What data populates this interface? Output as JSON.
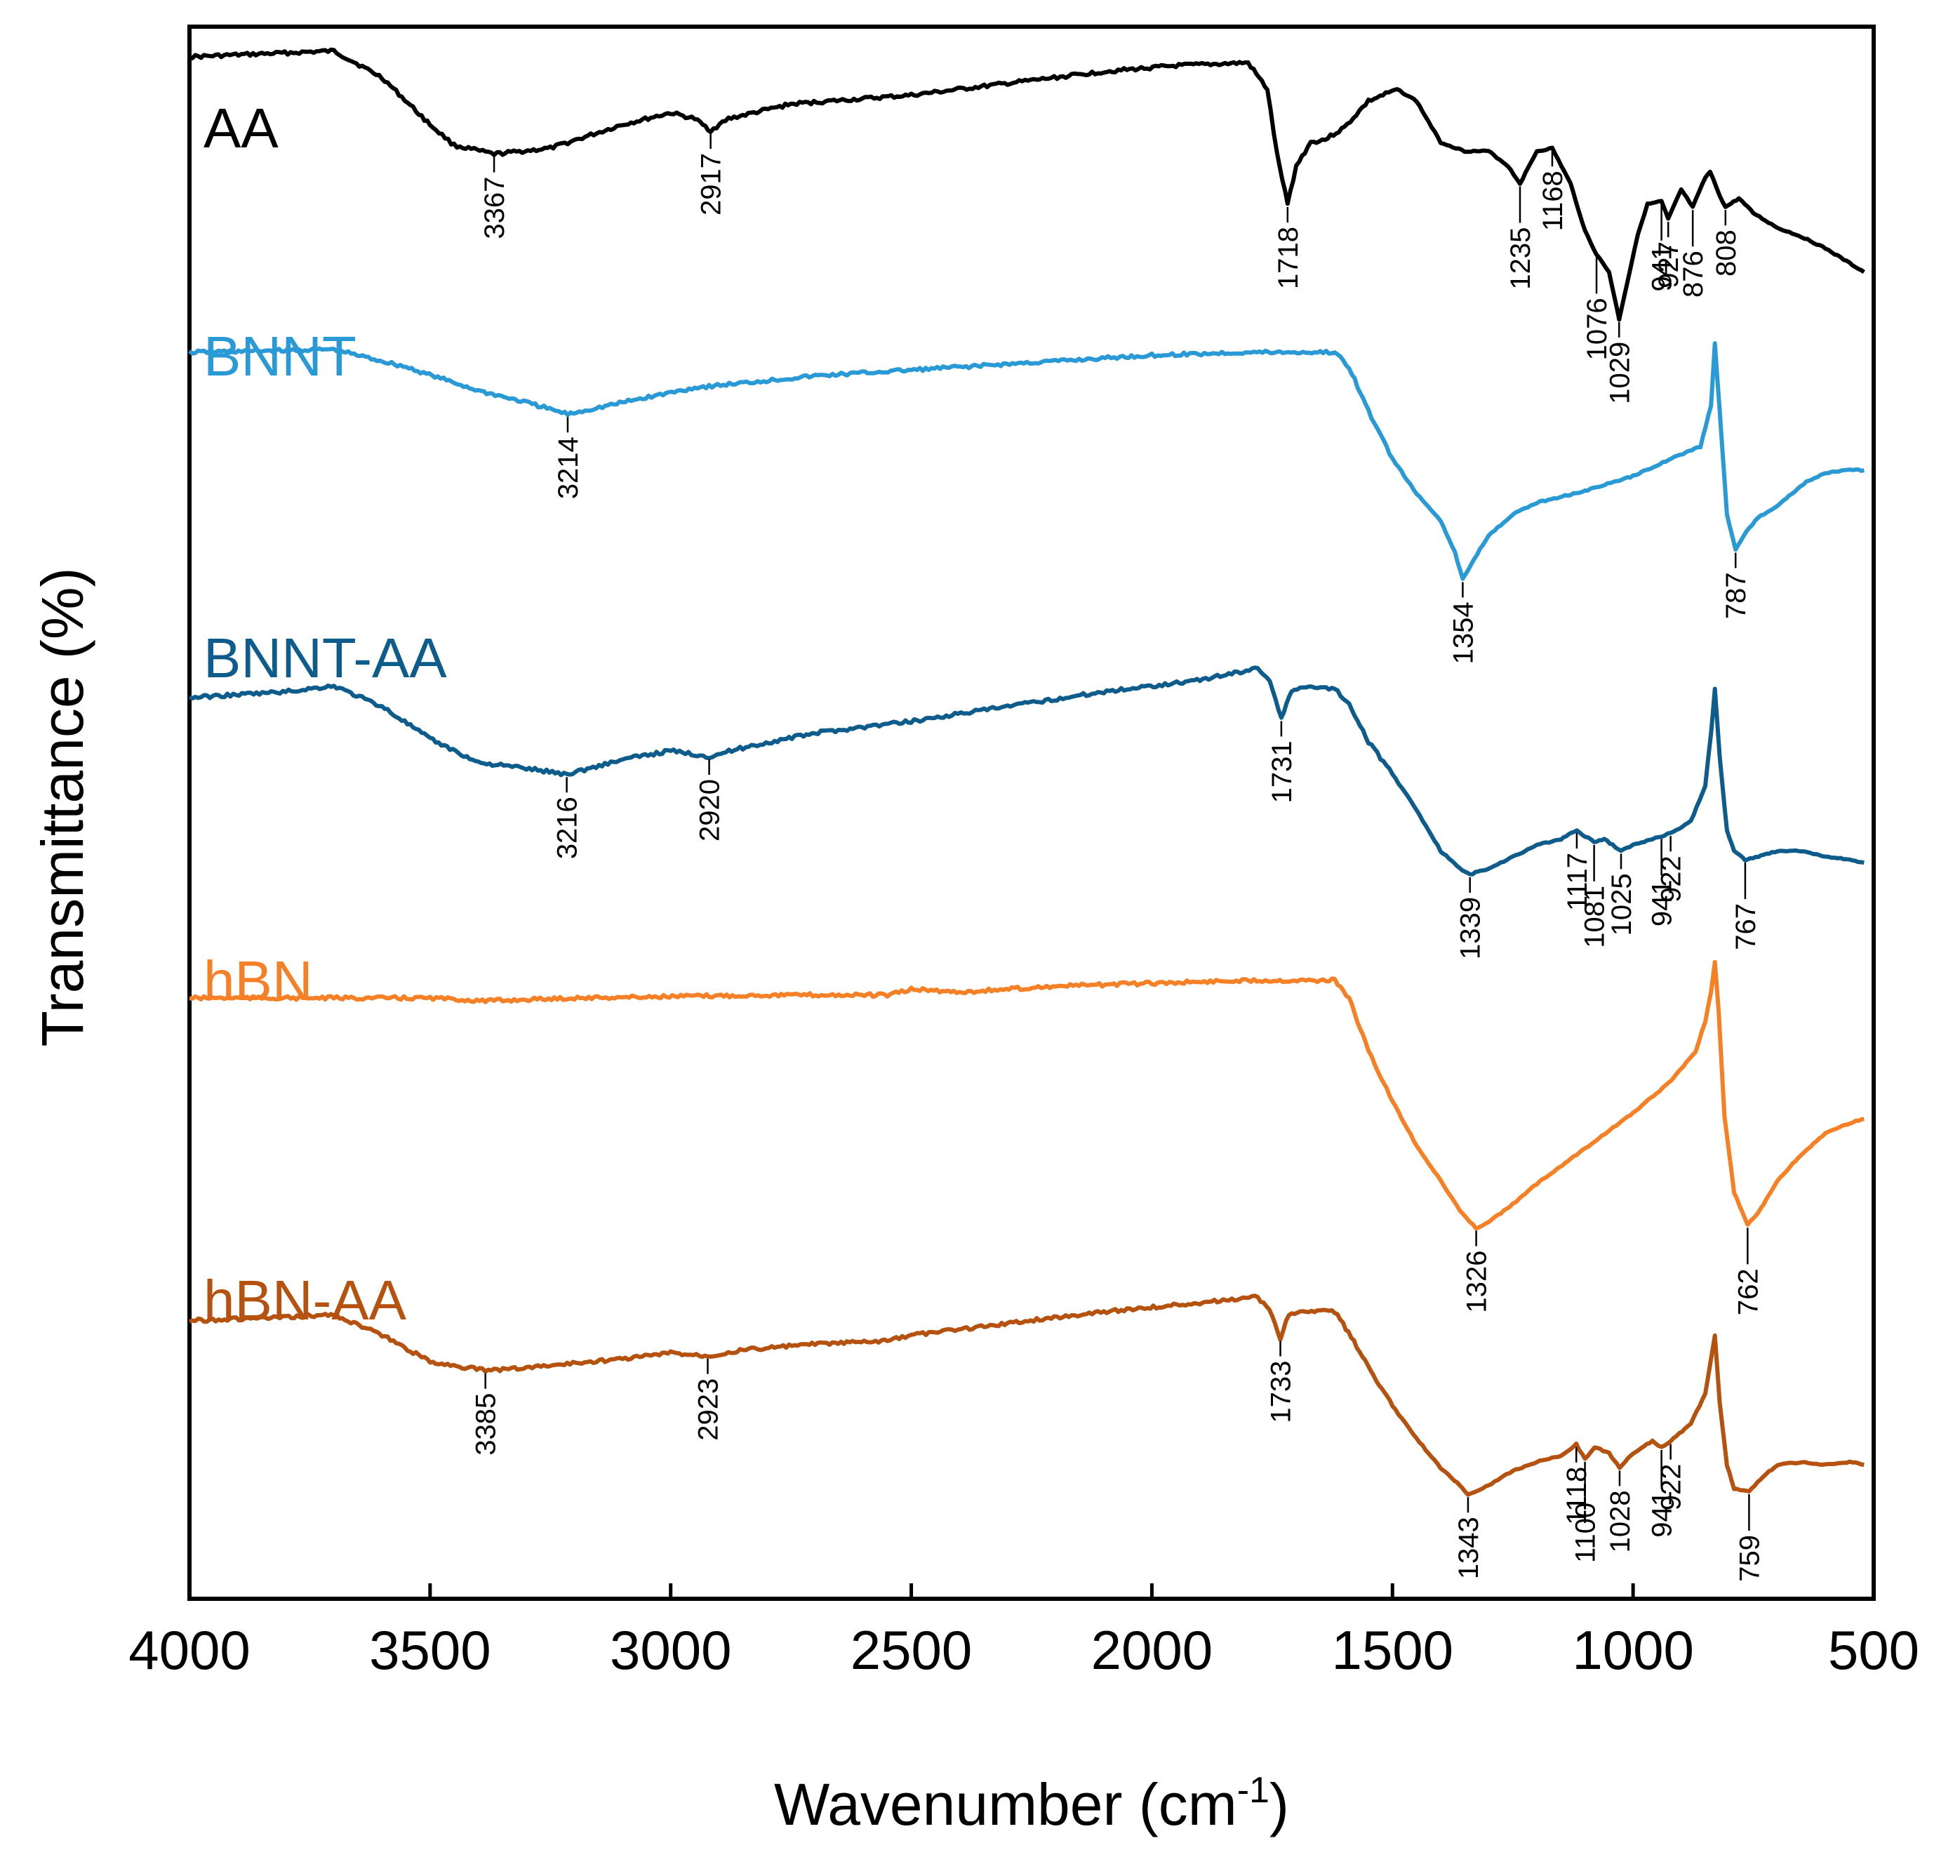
{
  "chart_data": {
    "type": "line",
    "title": "",
    "xlabel": "Wavenumber (cm",
    "xlabel_sup": "-1",
    "xlabel_close": ")",
    "ylabel": "Transmittance (%)",
    "xlim": [
      4000,
      500
    ],
    "xticks": [
      "4000",
      "3500",
      "3000",
      "2500",
      "2000",
      "1500",
      "1000",
      "500"
    ],
    "y_units": "arbitrary, vertically offset",
    "series": [
      {
        "name": "AA",
        "color": "#000000",
        "points": [
          [
            4000,
            0.95
          ],
          [
            3850,
            0.96
          ],
          [
            3700,
            0.97
          ],
          [
            3600,
            0.88
          ],
          [
            3500,
            0.72
          ],
          [
            3450,
            0.65
          ],
          [
            3367,
            0.62
          ],
          [
            3250,
            0.64
          ],
          [
            3100,
            0.72
          ],
          [
            3000,
            0.76
          ],
          [
            2950,
            0.74
          ],
          [
            2917,
            0.7
          ],
          [
            2880,
            0.74
          ],
          [
            2750,
            0.79
          ],
          [
            2500,
            0.82
          ],
          [
            2300,
            0.86
          ],
          [
            2100,
            0.9
          ],
          [
            1950,
            0.92
          ],
          [
            1800,
            0.93
          ],
          [
            1760,
            0.84
          ],
          [
            1740,
            0.62
          ],
          [
            1718,
            0.45
          ],
          [
            1700,
            0.58
          ],
          [
            1670,
            0.66
          ],
          [
            1640,
            0.67
          ],
          [
            1600,
            0.71
          ],
          [
            1550,
            0.8
          ],
          [
            1490,
            0.84
          ],
          [
            1450,
            0.8
          ],
          [
            1400,
            0.66
          ],
          [
            1350,
            0.63
          ],
          [
            1300,
            0.63
          ],
          [
            1260,
            0.58
          ],
          [
            1235,
            0.52
          ],
          [
            1200,
            0.63
          ],
          [
            1168,
            0.64
          ],
          [
            1130,
            0.52
          ],
          [
            1100,
            0.36
          ],
          [
            1076,
            0.28
          ],
          [
            1050,
            0.22
          ],
          [
            1029,
            0.06
          ],
          [
            1010,
            0.2
          ],
          [
            990,
            0.35
          ],
          [
            970,
            0.45
          ],
          [
            941,
            0.46
          ],
          [
            927,
            0.4
          ],
          [
            900,
            0.5
          ],
          [
            876,
            0.44
          ],
          [
            850,
            0.54
          ],
          [
            840,
            0.56
          ],
          [
            820,
            0.48
          ],
          [
            808,
            0.44
          ],
          [
            780,
            0.47
          ],
          [
            750,
            0.42
          ],
          [
            700,
            0.37
          ],
          [
            650,
            0.34
          ],
          [
            600,
            0.3
          ],
          [
            550,
            0.25
          ],
          [
            520,
            0.22
          ]
        ],
        "peaks": [
          {
            "wn": 3367,
            "label": "3367"
          },
          {
            "wn": 2917,
            "label": "2917"
          },
          {
            "wn": 1718,
            "label": "1718"
          },
          {
            "wn": 1235,
            "label": "1235"
          },
          {
            "wn": 1168,
            "label": "1168"
          },
          {
            "wn": 1076,
            "label": "1076"
          },
          {
            "wn": 1029,
            "label": "1029"
          },
          {
            "wn": 941,
            "label": "941"
          },
          {
            "wn": 927,
            "label": "927"
          },
          {
            "wn": 876,
            "label": "876"
          },
          {
            "wn": 808,
            "label": "808"
          }
        ]
      },
      {
        "name": "BNNT",
        "color": "#2a9ad6",
        "points": [
          [
            4000,
            0.9
          ],
          [
            3700,
            0.91
          ],
          [
            3550,
            0.85
          ],
          [
            3400,
            0.77
          ],
          [
            3300,
            0.73
          ],
          [
            3214,
            0.69
          ],
          [
            3100,
            0.73
          ],
          [
            2950,
            0.78
          ],
          [
            2700,
            0.82
          ],
          [
            2500,
            0.84
          ],
          [
            2200,
            0.87
          ],
          [
            2000,
            0.89
          ],
          [
            1800,
            0.9
          ],
          [
            1620,
            0.9
          ],
          [
            1590,
            0.85
          ],
          [
            1550,
            0.7
          ],
          [
            1500,
            0.54
          ],
          [
            1450,
            0.42
          ],
          [
            1400,
            0.33
          ],
          [
            1370,
            0.22
          ],
          [
            1354,
            0.13
          ],
          [
            1330,
            0.2
          ],
          [
            1300,
            0.28
          ],
          [
            1250,
            0.35
          ],
          [
            1200,
            0.39
          ],
          [
            1100,
            0.43
          ],
          [
            1000,
            0.48
          ],
          [
            920,
            0.54
          ],
          [
            860,
            0.58
          ],
          [
            838,
            0.72
          ],
          [
            830,
            0.93
          ],
          [
            820,
            0.7
          ],
          [
            805,
            0.35
          ],
          [
            787,
            0.23
          ],
          [
            770,
            0.28
          ],
          [
            740,
            0.34
          ],
          [
            700,
            0.38
          ],
          [
            640,
            0.46
          ],
          [
            600,
            0.49
          ],
          [
            560,
            0.5
          ],
          [
            520,
            0.5
          ]
        ],
        "peaks": [
          {
            "wn": 3214,
            "label": "3214"
          },
          {
            "wn": 1354,
            "label": "1354"
          },
          {
            "wn": 787,
            "label": "787"
          }
        ]
      },
      {
        "name": "BNNT-AA",
        "color": "#0d5c8c",
        "points": [
          [
            4000,
            0.8
          ],
          [
            3800,
            0.82
          ],
          [
            3700,
            0.84
          ],
          [
            3600,
            0.77
          ],
          [
            3500,
            0.66
          ],
          [
            3400,
            0.58
          ],
          [
            3300,
            0.56
          ],
          [
            3216,
            0.54
          ],
          [
            3100,
            0.59
          ],
          [
            3000,
            0.62
          ],
          [
            2920,
            0.6
          ],
          [
            2850,
            0.63
          ],
          [
            2700,
            0.68
          ],
          [
            2500,
            0.72
          ],
          [
            2300,
            0.77
          ],
          [
            2100,
            0.82
          ],
          [
            1900,
            0.86
          ],
          [
            1780,
            0.9
          ],
          [
            1755,
            0.86
          ],
          [
            1731,
            0.73
          ],
          [
            1710,
            0.82
          ],
          [
            1680,
            0.84
          ],
          [
            1620,
            0.83
          ],
          [
            1590,
            0.78
          ],
          [
            1550,
            0.65
          ],
          [
            1500,
            0.54
          ],
          [
            1450,
            0.42
          ],
          [
            1400,
            0.28
          ],
          [
            1360,
            0.22
          ],
          [
            1339,
            0.2
          ],
          [
            1300,
            0.22
          ],
          [
            1250,
            0.26
          ],
          [
            1200,
            0.3
          ],
          [
            1150,
            0.32
          ],
          [
            1117,
            0.35
          ],
          [
            1100,
            0.33
          ],
          [
            1081,
            0.31
          ],
          [
            1060,
            0.32
          ],
          [
            1025,
            0.28
          ],
          [
            1000,
            0.3
          ],
          [
            960,
            0.32
          ],
          [
            941,
            0.33
          ],
          [
            922,
            0.34
          ],
          [
            880,
            0.38
          ],
          [
            850,
            0.5
          ],
          [
            838,
            0.68
          ],
          [
            830,
            0.83
          ],
          [
            820,
            0.6
          ],
          [
            805,
            0.35
          ],
          [
            790,
            0.28
          ],
          [
            767,
            0.25
          ],
          [
            740,
            0.26
          ],
          [
            700,
            0.28
          ],
          [
            650,
            0.28
          ],
          [
            600,
            0.26
          ],
          [
            550,
            0.25
          ],
          [
            520,
            0.24
          ]
        ],
        "peaks": [
          {
            "wn": 3216,
            "label": "3216"
          },
          {
            "wn": 2920,
            "label": "2920"
          },
          {
            "wn": 1731,
            "label": "1731"
          },
          {
            "wn": 1339,
            "label": "1339"
          },
          {
            "wn": 1117,
            "label": "1117"
          },
          {
            "wn": 1081,
            "label": "1081"
          },
          {
            "wn": 1025,
            "label": "1025"
          },
          {
            "wn": 941,
            "label": "941"
          },
          {
            "wn": 922,
            "label": "922"
          },
          {
            "wn": 767,
            "label": "767"
          }
        ]
      },
      {
        "name": "hBN",
        "color": "#f58025",
        "points": [
          [
            4000,
            0.9
          ],
          [
            3700,
            0.9
          ],
          [
            3500,
            0.9
          ],
          [
            3385,
            0.89
          ],
          [
            3200,
            0.9
          ],
          [
            2800,
            0.91
          ],
          [
            2550,
            0.91
          ],
          [
            2520,
            0.92
          ],
          [
            2500,
            0.93
          ],
          [
            2400,
            0.92
          ],
          [
            2200,
            0.94
          ],
          [
            2000,
            0.95
          ],
          [
            1800,
            0.96
          ],
          [
            1620,
            0.96
          ],
          [
            1590,
            0.9
          ],
          [
            1550,
            0.72
          ],
          [
            1500,
            0.55
          ],
          [
            1450,
            0.4
          ],
          [
            1400,
            0.28
          ],
          [
            1360,
            0.18
          ],
          [
            1340,
            0.14
          ],
          [
            1326,
            0.12
          ],
          [
            1300,
            0.14
          ],
          [
            1250,
            0.2
          ],
          [
            1200,
            0.27
          ],
          [
            1100,
            0.39
          ],
          [
            1000,
            0.51
          ],
          [
            920,
            0.62
          ],
          [
            870,
            0.72
          ],
          [
            850,
            0.82
          ],
          [
            838,
            0.92
          ],
          [
            830,
            1.02
          ],
          [
            822,
            0.85
          ],
          [
            810,
            0.5
          ],
          [
            790,
            0.24
          ],
          [
            762,
            0.13
          ],
          [
            740,
            0.17
          ],
          [
            700,
            0.28
          ],
          [
            650,
            0.37
          ],
          [
            600,
            0.44
          ],
          [
            560,
            0.47
          ],
          [
            520,
            0.49
          ]
        ],
        "peaks": [
          {
            "wn": 1326,
            "label": "1326"
          },
          {
            "wn": 762,
            "label": "762"
          }
        ]
      },
      {
        "name": "hBN-AA",
        "color": "#b5520f",
        "points": [
          [
            4000,
            0.83
          ],
          [
            3800,
            0.84
          ],
          [
            3700,
            0.85
          ],
          [
            3600,
            0.78
          ],
          [
            3500,
            0.69
          ],
          [
            3385,
            0.66
          ],
          [
            3300,
            0.67
          ],
          [
            3100,
            0.7
          ],
          [
            3000,
            0.72
          ],
          [
            2923,
            0.71
          ],
          [
            2850,
            0.73
          ],
          [
            2700,
            0.75
          ],
          [
            2550,
            0.76
          ],
          [
            2500,
            0.78
          ],
          [
            2300,
            0.82
          ],
          [
            2100,
            0.86
          ],
          [
            1900,
            0.89
          ],
          [
            1780,
            0.91
          ],
          [
            1750,
            0.85
          ],
          [
            1733,
            0.77
          ],
          [
            1715,
            0.85
          ],
          [
            1680,
            0.86
          ],
          [
            1620,
            0.86
          ],
          [
            1580,
            0.76
          ],
          [
            1540,
            0.64
          ],
          [
            1500,
            0.54
          ],
          [
            1450,
            0.43
          ],
          [
            1400,
            0.33
          ],
          [
            1360,
            0.27
          ],
          [
            1343,
            0.24
          ],
          [
            1300,
            0.27
          ],
          [
            1250,
            0.32
          ],
          [
            1200,
            0.35
          ],
          [
            1150,
            0.37
          ],
          [
            1118,
            0.41
          ],
          [
            1100,
            0.36
          ],
          [
            1080,
            0.4
          ],
          [
            1050,
            0.38
          ],
          [
            1028,
            0.33
          ],
          [
            1000,
            0.38
          ],
          [
            960,
            0.42
          ],
          [
            941,
            0.4
          ],
          [
            922,
            0.42
          ],
          [
            880,
            0.48
          ],
          [
            850,
            0.58
          ],
          [
            838,
            0.7
          ],
          [
            830,
            0.78
          ],
          [
            820,
            0.55
          ],
          [
            805,
            0.34
          ],
          [
            790,
            0.26
          ],
          [
            759,
            0.25
          ],
          [
            730,
            0.3
          ],
          [
            700,
            0.34
          ],
          [
            650,
            0.35
          ],
          [
            600,
            0.34
          ],
          [
            550,
            0.35
          ],
          [
            520,
            0.34
          ]
        ],
        "peaks": [
          {
            "wn": 3385,
            "label": "3385"
          },
          {
            "wn": 2923,
            "label": "2923"
          },
          {
            "wn": 1733,
            "label": "1733"
          },
          {
            "wn": 1343,
            "label": "1343"
          },
          {
            "wn": 1118,
            "label": "1118"
          },
          {
            "wn": 1100,
            "label": "1100"
          },
          {
            "wn": 1028,
            "label": "1028"
          },
          {
            "wn": 941,
            "label": "941"
          },
          {
            "wn": 922,
            "label": "922"
          },
          {
            "wn": 759,
            "label": "759"
          }
        ]
      }
    ]
  }
}
